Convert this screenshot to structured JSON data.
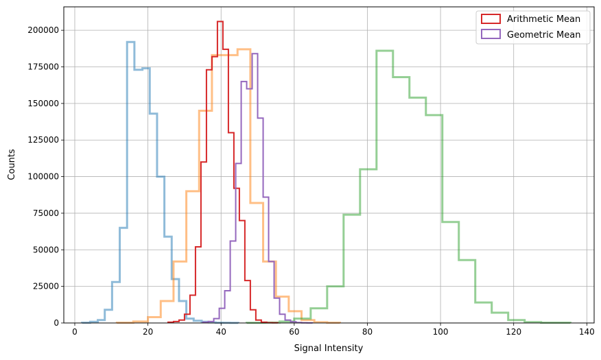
{
  "chart_data": {
    "type": "histogram",
    "xlabel": "Signal Intensity",
    "ylabel": "Counts",
    "xlim": [
      -3,
      142
    ],
    "ylim": [
      0,
      216000
    ],
    "xticks": [
      0,
      20,
      40,
      60,
      80,
      100,
      120,
      140
    ],
    "yticks": [
      0,
      25000,
      50000,
      75000,
      100000,
      125000,
      150000,
      175000,
      200000
    ],
    "grid": true,
    "legend_position": "top-right",
    "series": [
      {
        "color": "#1f77b4",
        "alpha": 0.5,
        "linewidth": 3,
        "legend": false,
        "edges": [
          2.0,
          4.2,
          6.3,
          8.2,
          10.2,
          12.3,
          14.3,
          16.3,
          18.5,
          20.5,
          22.5,
          24.5,
          26.5,
          28.5,
          30.5,
          32.5,
          34.7,
          36.6,
          38.5,
          40.5,
          42.5,
          44.7
        ],
        "counts": [
          200,
          800,
          2000,
          9000,
          28000,
          65000,
          192000,
          173000,
          174000,
          143000,
          100000,
          59000,
          30000,
          15000,
          3000,
          1500,
          800,
          400,
          200,
          100,
          50
        ]
      },
      {
        "color": "#ff7f0e",
        "alpha": 0.5,
        "linewidth": 3,
        "legend": false,
        "edges": [
          11.5,
          16.0,
          20.0,
          23.5,
          27.0,
          30.5,
          34.0,
          37.5,
          41.0,
          44.5,
          48.0,
          51.5,
          55.0,
          58.5,
          62.0,
          65.5,
          69.0,
          72.5
        ],
        "counts": [
          200,
          1000,
          4000,
          15000,
          42000,
          90000,
          145000,
          183000,
          183000,
          187000,
          82000,
          42000,
          18000,
          8000,
          2000,
          500,
          200
        ]
      },
      {
        "color": "#2ca02c",
        "alpha": 0.5,
        "linewidth": 3,
        "legend": false,
        "edges": [
          47.0,
          52.0,
          56.0,
          60.0,
          64.5,
          69.0,
          73.5,
          78.0,
          82.5,
          87.0,
          91.5,
          96.0,
          100.5,
          105.0,
          109.5,
          114.0,
          118.5,
          123.0,
          127.5,
          135.5
        ],
        "counts": [
          100,
          300,
          1000,
          3000,
          10000,
          25000,
          74000,
          105000,
          186000,
          168000,
          154000,
          142000,
          69000,
          43000,
          14000,
          7000,
          2000,
          600,
          200
        ]
      },
      {
        "name": "Arithmetic Mean",
        "color": "#d62728",
        "alpha": 1,
        "linewidth": 2,
        "legend": true,
        "edges": [
          25.5,
          27.0,
          28.5,
          30.0,
          31.5,
          33.0,
          34.5,
          36.0,
          37.5,
          39.0,
          40.5,
          42.0,
          43.5,
          45.0,
          46.5,
          48.0,
          49.5,
          51.0,
          52.5,
          54.0,
          55.5
        ],
        "counts": [
          500,
          1000,
          2000,
          6000,
          19000,
          52000,
          110000,
          173000,
          182000,
          206000,
          187000,
          130000,
          92000,
          70000,
          29000,
          9000,
          2000,
          500,
          200,
          100
        ]
      },
      {
        "name": "Geometric Mean",
        "color": "#9467bd",
        "alpha": 1,
        "linewidth": 2,
        "legend": true,
        "edges": [
          35.0,
          36.5,
          38.0,
          39.5,
          41.0,
          42.5,
          44.0,
          45.5,
          47.0,
          48.5,
          50.0,
          51.5,
          53.0,
          54.5,
          56.0,
          57.5,
          59.0,
          60.5,
          62.0,
          63.5,
          65.0
        ],
        "counts": [
          500,
          1000,
          3000,
          10000,
          22000,
          56000,
          109000,
          165000,
          160000,
          184000,
          140000,
          86000,
          42000,
          17000,
          6000,
          2000,
          800,
          300,
          100,
          50
        ]
      }
    ]
  }
}
